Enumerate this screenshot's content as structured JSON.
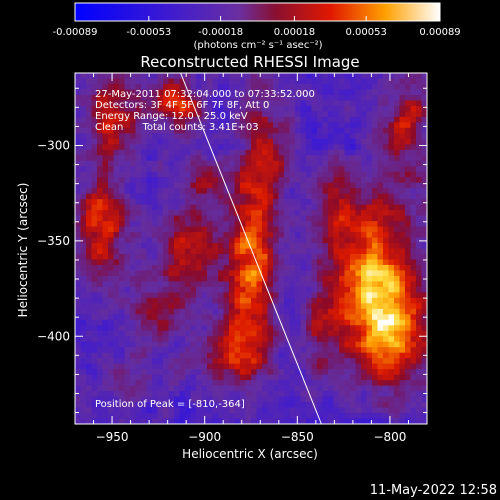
{
  "chart_data": {
    "type": "heatmap",
    "title": "Reconstructed RHESSI Image",
    "xlabel": "Heliocentric X (arcsec)",
    "ylabel": "Heliocentric Y (arcsec)",
    "xlim": [
      -970,
      -780
    ],
    "ylim": [
      -446,
      -262
    ],
    "x_ticks": [
      -950,
      -900,
      -850,
      -800
    ],
    "y_ticks": [
      -300,
      -350,
      -400
    ],
    "colorbar": {
      "ticks": [
        "-0.00089",
        "-0.00053",
        "-0.00018",
        "0.00018",
        "0.00053",
        "0.00089"
      ],
      "range": [
        -0.00089,
        0.00089
      ],
      "unit_label": "(photons cm⁻² s⁻¹ asec⁻²)"
    },
    "annotations": [
      "27-May-2011 07:32:04.000 to 07:33:52.000",
      "Detectors: 3F 4F 5F 6F 7F 8F, Att 0",
      "Energy Range: 12.0 - 25.0 keV",
      "Clean      Total counts: 3.41E+03"
    ],
    "peak_label": "Position of Peak = [-810,-364]",
    "peak": [
      -810,
      -364
    ],
    "limb_line": [
      [
        -913,
        -262
      ],
      [
        -837,
        -446
      ]
    ],
    "sources": [
      {
        "x": -808,
        "y": -365,
        "amp": 0.00089,
        "sx": 15,
        "sy": 25
      },
      {
        "x": -800,
        "y": -400,
        "amp": 0.00075,
        "sx": 14,
        "sy": 18
      },
      {
        "x": -875,
        "y": -370,
        "amp": 0.0007,
        "sx": 9,
        "sy": 28
      },
      {
        "x": -868,
        "y": -310,
        "amp": 0.00048,
        "sx": 9,
        "sy": 30
      },
      {
        "x": -908,
        "y": -355,
        "amp": 0.00055,
        "sx": 13,
        "sy": 17
      },
      {
        "x": -928,
        "y": -390,
        "amp": 0.0004,
        "sx": 10,
        "sy": 12
      },
      {
        "x": -955,
        "y": -342,
        "amp": 0.0006,
        "sx": 9,
        "sy": 22
      },
      {
        "x": -950,
        "y": -285,
        "amp": 0.00055,
        "sx": 11,
        "sy": 15
      },
      {
        "x": -915,
        "y": -278,
        "amp": 0.00055,
        "sx": 10,
        "sy": 10
      },
      {
        "x": -885,
        "y": -410,
        "amp": 0.00045,
        "sx": 14,
        "sy": 12
      },
      {
        "x": -790,
        "y": -290,
        "amp": 0.00048,
        "sx": 10,
        "sy": 22
      },
      {
        "x": -835,
        "y": -395,
        "amp": 0.0004,
        "sx": 8,
        "sy": 18
      },
      {
        "x": -830,
        "y": -330,
        "amp": 0.00038,
        "sx": 8,
        "sy": 15
      },
      {
        "x": -898,
        "y": -318,
        "amp": 0.00032,
        "sx": 10,
        "sy": 10
      },
      {
        "x": -940,
        "y": -425,
        "amp": 0.00028,
        "sx": 12,
        "sy": 8
      }
    ]
  },
  "footer": {
    "datetime": "11-May-2022 12:58"
  }
}
